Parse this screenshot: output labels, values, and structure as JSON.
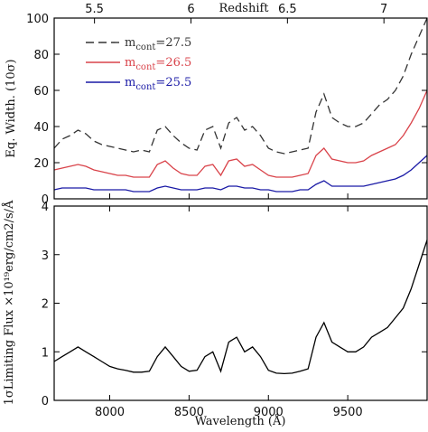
{
  "chart_data": [
    {
      "type": "line",
      "panel": "top",
      "ylabel": "Eq. Width. (10σ)",
      "top_axis_label": "Redshift",
      "xlim": [
        7650,
        10000
      ],
      "ylim": [
        0,
        100
      ],
      "yticks": [
        0,
        20,
        40,
        60,
        80,
        100
      ],
      "top_ticks": [
        {
          "label": "5.5",
          "wavelength": 7904
        },
        {
          "label": "6",
          "wavelength": 8512
        },
        {
          "label": "6.5",
          "wavelength": 9120
        },
        {
          "label": "7",
          "wavelength": 9728
        }
      ],
      "series": [
        {
          "name": "m_cont=27.5",
          "legend": {
            "base": "m",
            "sub": "cont",
            "tail": "=27.5"
          },
          "color": "#333333",
          "dash": "9,5",
          "x": [
            7650,
            7700,
            7750,
            7800,
            7850,
            7900,
            7950,
            8000,
            8050,
            8100,
            8150,
            8200,
            8250,
            8300,
            8350,
            8400,
            8450,
            8500,
            8550,
            8600,
            8650,
            8700,
            8750,
            8800,
            8850,
            8900,
            8950,
            9000,
            9050,
            9100,
            9150,
            9200,
            9250,
            9300,
            9350,
            9400,
            9450,
            9500,
            9550,
            9600,
            9650,
            9700,
            9750,
            9800,
            9850,
            9900,
            9950,
            10000
          ],
          "values": [
            28,
            33,
            35,
            38,
            36,
            32,
            30,
            29,
            28,
            27,
            26,
            27,
            26,
            38,
            40,
            35,
            31,
            28,
            27,
            38,
            40,
            28,
            42,
            45,
            38,
            40,
            35,
            28,
            26,
            25,
            26,
            27,
            28,
            48,
            58,
            45,
            42,
            40,
            40,
            42,
            47,
            52,
            55,
            60,
            68,
            80,
            90,
            100
          ]
        },
        {
          "name": "m_cont=26.5",
          "legend": {
            "base": "m",
            "sub": "cont",
            "tail": "=26.5"
          },
          "color": "#d9434a",
          "dash": "",
          "x": [
            7650,
            7700,
            7750,
            7800,
            7850,
            7900,
            7950,
            8000,
            8050,
            8100,
            8150,
            8200,
            8250,
            8300,
            8350,
            8400,
            8450,
            8500,
            8550,
            8600,
            8650,
            8700,
            8750,
            8800,
            8850,
            8900,
            8950,
            9000,
            9050,
            9100,
            9150,
            9200,
            9250,
            9300,
            9350,
            9400,
            9450,
            9500,
            9550,
            9600,
            9650,
            9700,
            9750,
            9800,
            9850,
            9900,
            9950,
            10000
          ],
          "values": [
            16,
            17,
            18,
            19,
            18,
            16,
            15,
            14,
            13,
            13,
            12,
            12,
            12,
            19,
            21,
            17,
            14,
            13,
            13,
            18,
            19,
            13,
            21,
            22,
            18,
            19,
            16,
            13,
            12,
            12,
            12,
            13,
            14,
            24,
            28,
            22,
            21,
            20,
            20,
            21,
            24,
            26,
            28,
            30,
            35,
            42,
            50,
            60
          ]
        },
        {
          "name": "m_cont=25.5",
          "legend": {
            "base": "m",
            "sub": "cont",
            "tail": "=25.5"
          },
          "color": "#1a1aa6",
          "dash": "",
          "x": [
            7650,
            7700,
            7750,
            7800,
            7850,
            7900,
            7950,
            8000,
            8050,
            8100,
            8150,
            8200,
            8250,
            8300,
            8350,
            8400,
            8450,
            8500,
            8550,
            8600,
            8650,
            8700,
            8750,
            8800,
            8850,
            8900,
            8950,
            9000,
            9050,
            9100,
            9150,
            9200,
            9250,
            9300,
            9350,
            9400,
            9450,
            9500,
            9550,
            9600,
            9650,
            9700,
            9750,
            9800,
            9850,
            9900,
            9950,
            10000
          ],
          "values": [
            5,
            6,
            6,
            6,
            6,
            5,
            5,
            5,
            5,
            5,
            4,
            4,
            4,
            6,
            7,
            6,
            5,
            5,
            5,
            6,
            6,
            5,
            7,
            7,
            6,
            6,
            5,
            5,
            4,
            4,
            4,
            5,
            5,
            8,
            10,
            7,
            7,
            7,
            7,
            7,
            8,
            9,
            10,
            11,
            13,
            16,
            20,
            24
          ]
        }
      ]
    },
    {
      "type": "line",
      "panel": "bottom",
      "xlabel": "Wavelength (Å)",
      "ylabel": "1σLimiting Flux ×10¹⁹erg/cm2/s/Å",
      "xlim": [
        7650,
        10000
      ],
      "ylim": [
        0,
        4
      ],
      "xticks": [
        8000,
        8500,
        9000,
        9500
      ],
      "yticks": [
        0,
        1,
        2,
        3,
        4
      ],
      "series": [
        {
          "name": "",
          "color": "#000000",
          "x": [
            7650,
            7700,
            7750,
            7800,
            7850,
            7900,
            7950,
            8000,
            8050,
            8100,
            8150,
            8200,
            8250,
            8300,
            8350,
            8400,
            8450,
            8500,
            8550,
            8600,
            8650,
            8700,
            8750,
            8800,
            8850,
            8900,
            8950,
            9000,
            9050,
            9100,
            9150,
            9200,
            9250,
            9300,
            9350,
            9400,
            9450,
            9500,
            9550,
            9600,
            9650,
            9700,
            9750,
            9800,
            9850,
            9900,
            9950,
            10000
          ],
          "values": [
            0.8,
            0.9,
            1.0,
            1.1,
            1.0,
            0.9,
            0.8,
            0.7,
            0.65,
            0.62,
            0.58,
            0.58,
            0.6,
            0.9,
            1.1,
            0.9,
            0.7,
            0.6,
            0.62,
            0.9,
            1.0,
            0.6,
            1.2,
            1.3,
            1.0,
            1.1,
            0.9,
            0.62,
            0.56,
            0.55,
            0.56,
            0.6,
            0.65,
            1.3,
            1.6,
            1.2,
            1.1,
            1.0,
            1.0,
            1.1,
            1.3,
            1.4,
            1.5,
            1.7,
            1.9,
            2.3,
            2.8,
            3.3
          ]
        }
      ]
    }
  ]
}
